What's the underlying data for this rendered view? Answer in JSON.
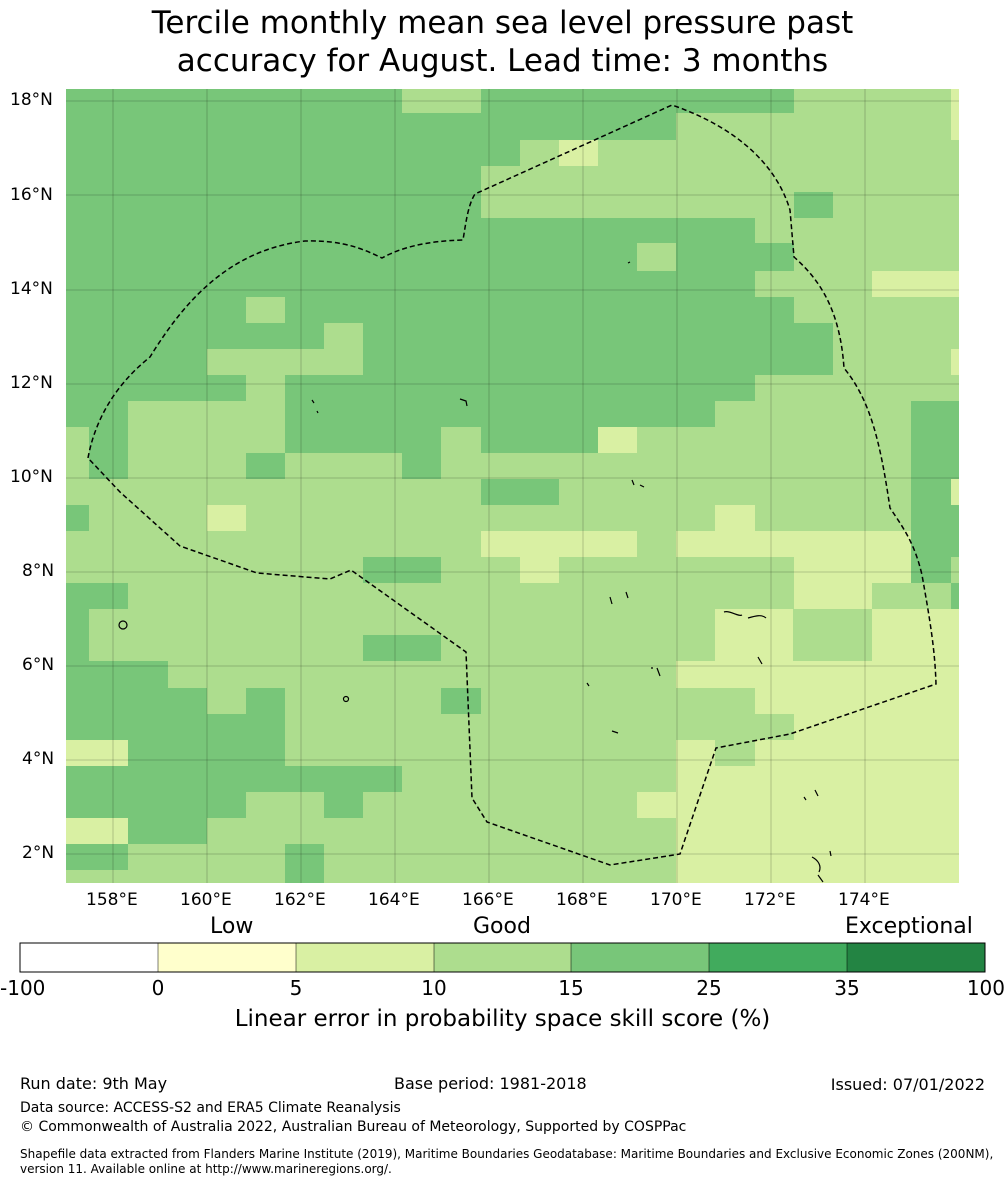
{
  "title_line1": "Tercile monthly mean sea level pressure past",
  "title_line2": "accuracy for August. Lead time: 3 months",
  "lat_labels": [
    "18°N",
    "16°N",
    "14°N",
    "12°N",
    "10°N",
    "8°N",
    "6°N",
    "4°N",
    "2°N"
  ],
  "lon_labels": [
    "158°E",
    "160°E",
    "162°E",
    "164°E",
    "166°E",
    "168°E",
    "170°E",
    "172°E",
    "174°E"
  ],
  "colorbar": {
    "categories": [
      "Low",
      "Good",
      "Exceptional"
    ],
    "ticks": [
      "-100",
      "0",
      "5",
      "10",
      "15",
      "25",
      "35",
      "100"
    ],
    "colors": [
      "#ffffff",
      "#ffffcc",
      "#d9f0a3",
      "#addd8e",
      "#78c679",
      "#41ab5d",
      "#238443"
    ],
    "label": "Linear error in probability space skill score (%)"
  },
  "footer": {
    "run_date": "Run date: 9th May",
    "base_period": "Base period: 1981-2018",
    "issued": "Issued: 07/01/2022",
    "data_source": "Data source: ACCESS-S2 and ERA5 Climate Reanalysis",
    "copyright": "© Commonwealth of Australia 2022, Australian Bureau of Meteorology, Supported by COSPPac",
    "shapefile_line1": "Shapefile data extracted from Flanders Marine Institute (2019), Maritime Boundaries Geodatabase: Maritime Boundaries and Exclusive Economic Zones (200NM),",
    "shapefile_line2": "version 11. Available online at http://www.marineregions.org/."
  }
}
